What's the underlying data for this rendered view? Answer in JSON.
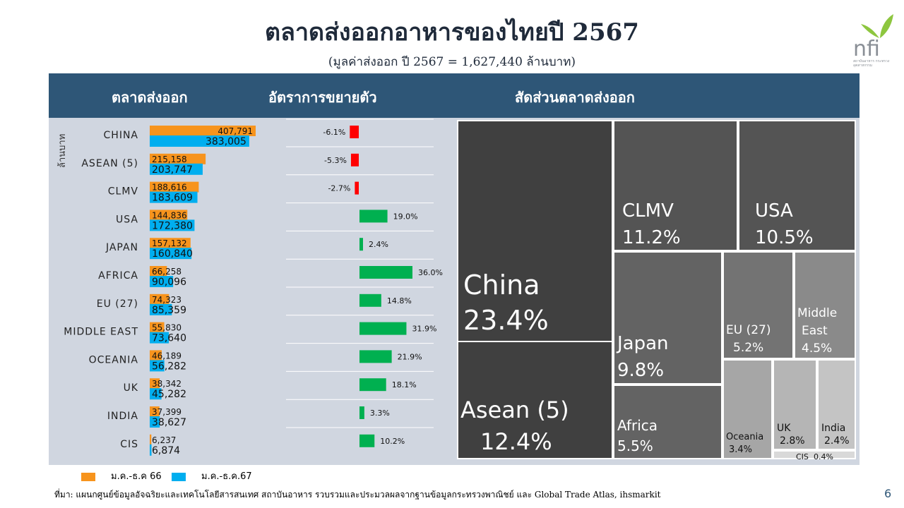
{
  "title": "ตลาดส่งออกอาหารของไทยปี 2567",
  "subtitle": "(มูลค่าส่งออก ปี 2567 =  1,627,440  ล้านบาท)",
  "logo_text": "nfi",
  "logo_sub": "สถาบันอาหาร กระทรวงอุตสาหกรรม",
  "headers": {
    "markets": "ตลาดส่งออก",
    "growth": "อัตราการขยายตัว",
    "share": "สัดส่วนตลาดส่งออก"
  },
  "unit_label": "ล้านบาท",
  "legend": {
    "series_2023": "ม.ค.-ธ.ค 66",
    "series_2024": "ม.ค.-ธ.ค.67"
  },
  "footer": "ที่มา: แผนกศูนย์ข้อมูลอัจฉริยะและเทคโนโลยีสารสนเทศ  สถาบันอาหาร  รวบรวมและประมวลผลจากฐานข้อมูลกระทรวงพาณิชย์  และ Global Trade Atlas, ihsmarkit",
  "page_number": "6",
  "colors": {
    "orange": "#f7941d",
    "blue": "#00aeef",
    "red": "#ff0000",
    "green": "#00b050",
    "header": "#2e5677"
  },
  "chart_data": [
    {
      "type": "bar",
      "categories": [
        "CHINA",
        "ASEAN (5)",
        "CLMV",
        "USA",
        "JAPAN",
        "AFRICA",
        "EU (27)",
        "MIDDLE EAST",
        "OCEANIA",
        "UK",
        "INDIA",
        "CIS"
      ],
      "series": [
        {
          "name": "ม.ค.-ธ.ค 66",
          "values": [
            407791,
            215158,
            188616,
            144836,
            157132,
            66258,
            74323,
            55830,
            46189,
            38342,
            37399,
            6237
          ],
          "labels": [
            "407,791",
            "215,158",
            "188,616",
            "144,836",
            "157,132",
            "66,258",
            "74,323",
            "55,830",
            "46,189",
            "38,342",
            "37,399",
            "6,237"
          ]
        },
        {
          "name": "ม.ค.-ธ.ค.67",
          "values": [
            383005,
            203747,
            183609,
            172380,
            160840,
            90096,
            85359,
            73640,
            56282,
            45282,
            38627,
            6874
          ],
          "labels": [
            "383,005",
            "203,747",
            "183,609",
            "172,380",
            "160,840",
            "90,096",
            "85,359",
            "73,640",
            "56,282",
            "45,282",
            "38,627",
            "6,874"
          ]
        }
      ],
      "ylabel": "ล้านบาท"
    },
    {
      "type": "bar",
      "categories": [
        "CHINA",
        "ASEAN (5)",
        "CLMV",
        "USA",
        "JAPAN",
        "AFRICA",
        "EU (27)",
        "MIDDLE EAST",
        "OCEANIA",
        "UK",
        "INDIA",
        "CIS"
      ],
      "values": [
        -6.1,
        -5.3,
        -2.7,
        19.0,
        2.4,
        36.0,
        14.8,
        31.9,
        21.9,
        18.1,
        3.3,
        10.2
      ],
      "labels": [
        "-6.1%",
        "-5.3%",
        "-2.7%",
        "19.0%",
        "2.4%",
        "36.0%",
        "14.8%",
        "31.9%",
        "21.9%",
        "18.1%",
        "3.3%",
        "10.2%"
      ]
    },
    {
      "type": "treemap",
      "items": [
        {
          "name": "China",
          "value": 23.4,
          "label": "23.4%"
        },
        {
          "name": "Asean (5)",
          "value": 12.4,
          "label": "12.4%"
        },
        {
          "name": "CLMV",
          "value": 11.2,
          "label": "11.2%"
        },
        {
          "name": "USA",
          "value": 10.5,
          "label": "10.5%"
        },
        {
          "name": "Japan",
          "value": 9.8,
          "label": "9.8%"
        },
        {
          "name": "Africa",
          "value": 5.5,
          "label": "5.5%"
        },
        {
          "name": "EU (27)",
          "value": 5.2,
          "label": "5.2%"
        },
        {
          "name": "Middle East",
          "value": 4.5,
          "label": "4.5%"
        },
        {
          "name": "Oceania",
          "value": 3.4,
          "label": "3.4%"
        },
        {
          "name": "UK",
          "value": 2.8,
          "label": "2.8%"
        },
        {
          "name": "India",
          "value": 2.4,
          "label": "2.4%"
        },
        {
          "name": "CIS",
          "value": 0.4,
          "label": "0.4%"
        }
      ]
    }
  ]
}
